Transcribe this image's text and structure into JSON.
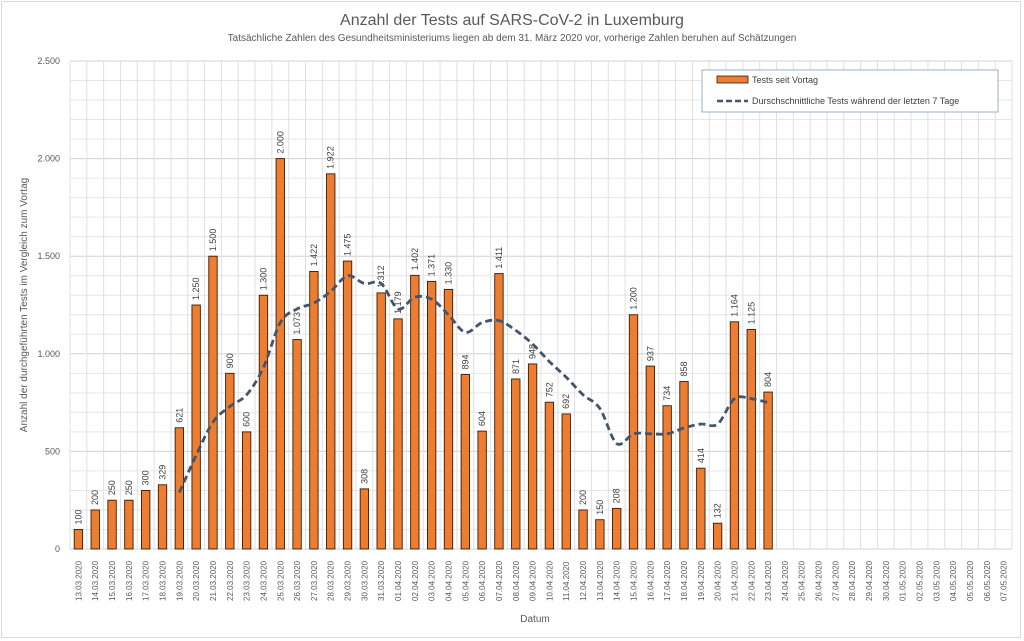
{
  "chart_data": {
    "type": "bar",
    "title": "Anzahl der Tests auf SARS-CoV-2 in Luxemburg",
    "subtitle": "Tatsächliche Zahlen des Gesundheitsministeriums liegen ab dem 31. März 2020 vor, vorherige Zahlen beruhen auf Schätzungen",
    "xlabel": "Datum",
    "ylabel": "Anzahl der durchgeführten Tests im Vergleich zum Vortag",
    "ylim": [
      0,
      2500
    ],
    "yticks": [
      0,
      500,
      1000,
      1500,
      2000,
      2500
    ],
    "ytick_labels": [
      "0",
      "500",
      "1.000",
      "1.500",
      "2.000",
      "2.500"
    ],
    "grid": true,
    "legend_position": "top-right",
    "categories": [
      "13.03.2020",
      "14.03.2020",
      "15.03.2020",
      "16.03.2020",
      "17.03.2020",
      "18.03.2020",
      "19.03.2020",
      "20.03.2020",
      "21.03.2020",
      "22.03.2020",
      "23.03.2020",
      "24.03.2020",
      "25.03.2020",
      "26.03.2020",
      "27.03.2020",
      "28.03.2020",
      "29.03.2020",
      "30.03.2020",
      "31.03.2020",
      "01.04.2020",
      "02.04.2020",
      "03.04.2020",
      "04.04.2020",
      "05.04.2020",
      "06.04.2020",
      "07.04.2020",
      "08.04.2020",
      "09.04.2020",
      "10.04.2020",
      "11.04.2020",
      "12.04.2020",
      "13.04.2020",
      "14.04.2020",
      "15.04.2020",
      "16.04.2020",
      "17.04.2020",
      "18.04.2020",
      "19.04.2020",
      "20.04.2020",
      "21.04.2020",
      "22.04.2020",
      "23.04.2020",
      "24.04.2020",
      "25.04.2020",
      "26.04.2020",
      "27.04.2020",
      "28.04.2020",
      "29.04.2020",
      "30.04.2020",
      "01.05.2020",
      "02.05.2020",
      "03.05.2020",
      "04.05.2020",
      "05.05.2020",
      "06.05.2020",
      "07.05.2020"
    ],
    "series": [
      {
        "name": "Tests seit Vortag",
        "type": "bar",
        "color": "#ed7d31",
        "values": [
          100,
          200,
          250,
          250,
          300,
          329,
          621,
          1250,
          1500,
          900,
          600,
          1300,
          2000,
          1073,
          1422,
          1922,
          1475,
          308,
          1312,
          1179,
          1402,
          1371,
          1330,
          894,
          604,
          1411,
          871,
          948,
          752,
          692,
          200,
          150,
          208,
          1200,
          937,
          734,
          858,
          414,
          132,
          1164,
          1125,
          804,
          null,
          null,
          null,
          null,
          null,
          null,
          null,
          null,
          null,
          null,
          null,
          null,
          null,
          null
        ],
        "labels": [
          "100",
          "200",
          "250",
          "250",
          "300",
          "329",
          "621",
          "1.250",
          "1.500",
          "900",
          "600",
          "1.300",
          "2.000",
          "1.073",
          "1.422",
          "1.922",
          "1.475",
          "308",
          "1.312",
          "1.179",
          "1.402",
          "1.371",
          "1.330",
          "894",
          "604",
          "1.411",
          "871",
          "948",
          "752",
          "692",
          "200",
          "150",
          "208",
          "1.200",
          "937",
          "734",
          "858",
          "414",
          "132",
          "1.164",
          "1.125",
          "804",
          null,
          null,
          null,
          null,
          null,
          null,
          null,
          null,
          null,
          null,
          null,
          null,
          null,
          null
        ]
      },
      {
        "name": "Durschschnittliche Tests während der letzten 7 Tage",
        "type": "line",
        "style": "dashed",
        "color": "#44546a",
        "values": [
          null,
          null,
          null,
          null,
          null,
          null,
          290,
          480,
          650,
          730,
          790,
          930,
          1160,
          1230,
          1260,
          1320,
          1400,
          1360,
          1360,
          1230,
          1290,
          1280,
          1200,
          1110,
          1160,
          1170,
          1120,
          1050,
          960,
          880,
          790,
          720,
          540,
          590,
          590,
          590,
          620,
          640,
          640,
          770,
          770,
          750,
          null,
          null,
          null,
          null,
          null,
          null,
          null,
          null,
          null,
          null,
          null,
          null,
          null,
          null
        ]
      }
    ]
  }
}
